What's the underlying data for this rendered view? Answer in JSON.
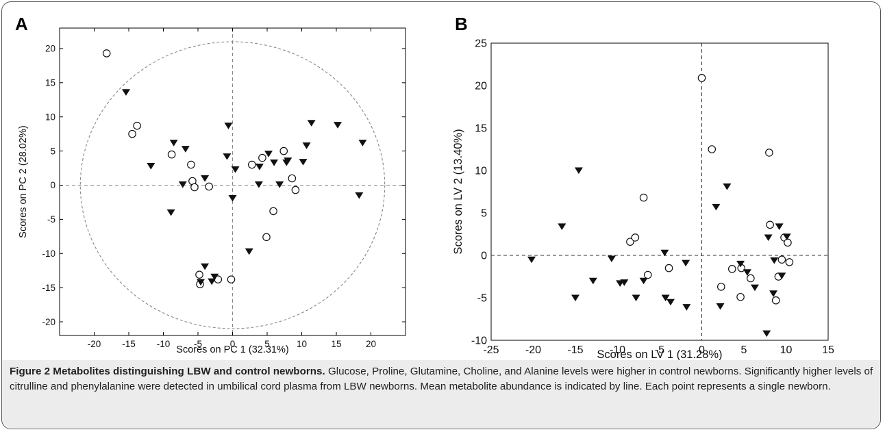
{
  "panels": {
    "a_label": "A",
    "b_label": "B"
  },
  "caption": {
    "title": "Figure 2 Metabolites distinguishing LBW and control newborns.",
    "text": "Glucose, Proline, Glutamine, Choline, and Alanine levels were higher in control newborns. Significantly higher levels of citrulline and phenylalanine were detected in umbilical cord plasma from LBW newborns. Mean metabolite abundance is indicated by line. Each point represents a single newborn."
  },
  "chart_data": [
    {
      "type": "scatter",
      "panel": "A",
      "title": "",
      "xlabel": "Scores on PC 1 (32.31%)",
      "ylabel": "Scores on PC 2 (28.02%)",
      "xlim": [
        -25,
        25
      ],
      "ylim": [
        -22,
        23
      ],
      "xticks": [
        -20,
        -15,
        -10,
        -5,
        0,
        5,
        10,
        15,
        20
      ],
      "yticks": [
        -20,
        -15,
        -10,
        -5,
        0,
        5,
        10,
        15,
        20
      ],
      "confidence_ellipse": {
        "cx": 0,
        "cy": 0,
        "rx": 22,
        "ry": 21
      },
      "reference_lines": {
        "x": 0,
        "y": 0
      },
      "box": true,
      "series": [
        {
          "marker": "open-circle",
          "points": [
            [
              -18.2,
              19.3
            ],
            [
              -14.5,
              7.5
            ],
            [
              -13.8,
              8.7
            ],
            [
              -8.8,
              4.5
            ],
            [
              -6.0,
              3.0
            ],
            [
              -5.8,
              0.6
            ],
            [
              -5.5,
              -0.3
            ],
            [
              -3.4,
              -0.2
            ],
            [
              -4.8,
              -13.1
            ],
            [
              -4.7,
              -14.5
            ],
            [
              -2.1,
              -13.8
            ],
            [
              -0.2,
              -13.8
            ],
            [
              2.8,
              3.0
            ],
            [
              4.3,
              4.0
            ],
            [
              7.4,
              5.0
            ],
            [
              8.6,
              1.0
            ],
            [
              9.1,
              -0.7
            ],
            [
              5.9,
              -3.8
            ],
            [
              4.9,
              -7.6
            ]
          ]
        },
        {
          "marker": "filled-triangle-down",
          "points": [
            [
              -15.4,
              13.6
            ],
            [
              -11.8,
              2.8
            ],
            [
              -8.5,
              6.2
            ],
            [
              -6.8,
              5.3
            ],
            [
              -7.2,
              0.1
            ],
            [
              -8.9,
              -4.0
            ],
            [
              -4.0,
              1.0
            ],
            [
              -4.0,
              -11.9
            ],
            [
              -4.6,
              -14.2
            ],
            [
              -3.0,
              -14.1
            ],
            [
              -2.6,
              -13.4
            ],
            [
              -0.6,
              8.7
            ],
            [
              -0.8,
              4.2
            ],
            [
              0.4,
              2.3
            ],
            [
              0.0,
              -1.9
            ],
            [
              2.4,
              -9.7
            ],
            [
              3.9,
              2.7
            ],
            [
              3.8,
              0.1
            ],
            [
              5.2,
              4.6
            ],
            [
              6.0,
              3.3
            ],
            [
              6.8,
              0.1
            ],
            [
              8.0,
              3.6
            ],
            [
              7.8,
              3.3
            ],
            [
              10.2,
              3.4
            ],
            [
              10.7,
              5.8
            ],
            [
              11.4,
              9.1
            ],
            [
              15.2,
              8.8
            ],
            [
              18.8,
              6.2
            ],
            [
              18.3,
              -1.5
            ]
          ]
        }
      ]
    },
    {
      "type": "scatter",
      "panel": "B",
      "title": "",
      "xlabel": "Scores on LV 1 (31.28%)",
      "ylabel": "Scores on LV 2 (13.40%)",
      "xlim": [
        -25,
        15
      ],
      "ylim": [
        -10,
        25
      ],
      "xticks": [
        -25,
        -20,
        -15,
        -10,
        -5,
        0,
        5,
        10,
        15
      ],
      "yticks": [
        -10,
        -5,
        0,
        5,
        10,
        15,
        20,
        25
      ],
      "reference_lines": {
        "x": 0,
        "y": 0
      },
      "box": true,
      "series": [
        {
          "marker": "open-circle",
          "points": [
            [
              0.0,
              20.9
            ],
            [
              1.2,
              12.5
            ],
            [
              -6.9,
              6.8
            ],
            [
              -8.5,
              1.6
            ],
            [
              -7.9,
              2.1
            ],
            [
              -6.4,
              -2.3
            ],
            [
              -3.9,
              -1.5
            ],
            [
              2.3,
              -3.7
            ],
            [
              3.6,
              -1.6
            ],
            [
              4.7,
              -1.5
            ],
            [
              4.6,
              -4.9
            ],
            [
              5.8,
              -2.7
            ],
            [
              8.0,
              12.1
            ],
            [
              8.1,
              3.6
            ],
            [
              9.8,
              2.1
            ],
            [
              10.2,
              1.5
            ],
            [
              10.4,
              -0.8
            ],
            [
              9.5,
              -0.5
            ],
            [
              9.1,
              -2.5
            ],
            [
              8.8,
              -5.3
            ]
          ]
        },
        {
          "marker": "filled-triangle-down",
          "points": [
            [
              -20.2,
              -0.5
            ],
            [
              -16.6,
              3.4
            ],
            [
              -14.6,
              10.0
            ],
            [
              -15.0,
              -5.0
            ],
            [
              -12.9,
              -3.0
            ],
            [
              -10.7,
              -0.4
            ],
            [
              -9.7,
              -3.3
            ],
            [
              -9.2,
              -3.2
            ],
            [
              -7.8,
              -5.0
            ],
            [
              -6.9,
              -3.0
            ],
            [
              -4.4,
              0.3
            ],
            [
              -4.3,
              -5.0
            ],
            [
              -3.7,
              -5.5
            ],
            [
              -1.9,
              -0.9
            ],
            [
              -1.8,
              -6.1
            ],
            [
              1.7,
              5.7
            ],
            [
              3.0,
              8.1
            ],
            [
              2.2,
              -6.0
            ],
            [
              4.6,
              -1.0
            ],
            [
              5.4,
              -2.0
            ],
            [
              6.3,
              -3.8
            ],
            [
              7.9,
              2.1
            ],
            [
              8.6,
              -0.6
            ],
            [
              8.5,
              -4.5
            ],
            [
              9.2,
              3.4
            ],
            [
              9.5,
              -2.4
            ],
            [
              10.1,
              2.2
            ],
            [
              7.7,
              -9.2
            ]
          ]
        }
      ]
    }
  ]
}
